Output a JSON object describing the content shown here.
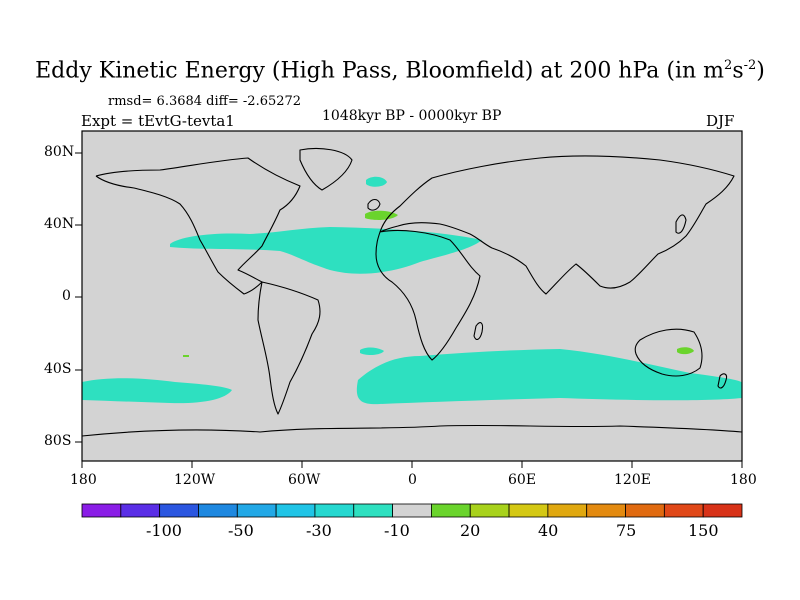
{
  "title": {
    "main": "Eddy Kinetic Energy (High Pass, Bloomfield) at 200 hPa (in m",
    "sup1": "2",
    "mid": "s",
    "sup2": "-2",
    "end": ")"
  },
  "stats": "rmsd= 6.3684 diff= -2.65272",
  "expt": "Expt = tEvtG-tevta1",
  "period": "1048kyr BP - 0000kyr BP",
  "season": "DJF",
  "lat_ticks": [
    "80N",
    "40N",
    "0",
    "40S",
    "80S"
  ],
  "lon_ticks": [
    "180",
    "120W",
    "60W",
    "0",
    "60E",
    "120E",
    "180"
  ],
  "colors": {
    "land_ocean": "#d3d3d3",
    "negative": "#2ee0c0",
    "positive": "#6ad42c",
    "coast": "#000000"
  },
  "colorbar": {
    "colors": [
      "#8a1de6",
      "#5a2ee6",
      "#2b56e0",
      "#1e88e0",
      "#22a8e6",
      "#20c4e6",
      "#26d8d0",
      "#2ee0c0",
      "#d3d3d3",
      "#6ad42c",
      "#a8d21c",
      "#d4c814",
      "#e0a810",
      "#e38a10",
      "#e06a10",
      "#e04818",
      "#d83218"
    ],
    "labels": [
      "-100",
      "-50",
      "-30",
      "-10",
      "20",
      "40",
      "75",
      "150"
    ]
  }
}
